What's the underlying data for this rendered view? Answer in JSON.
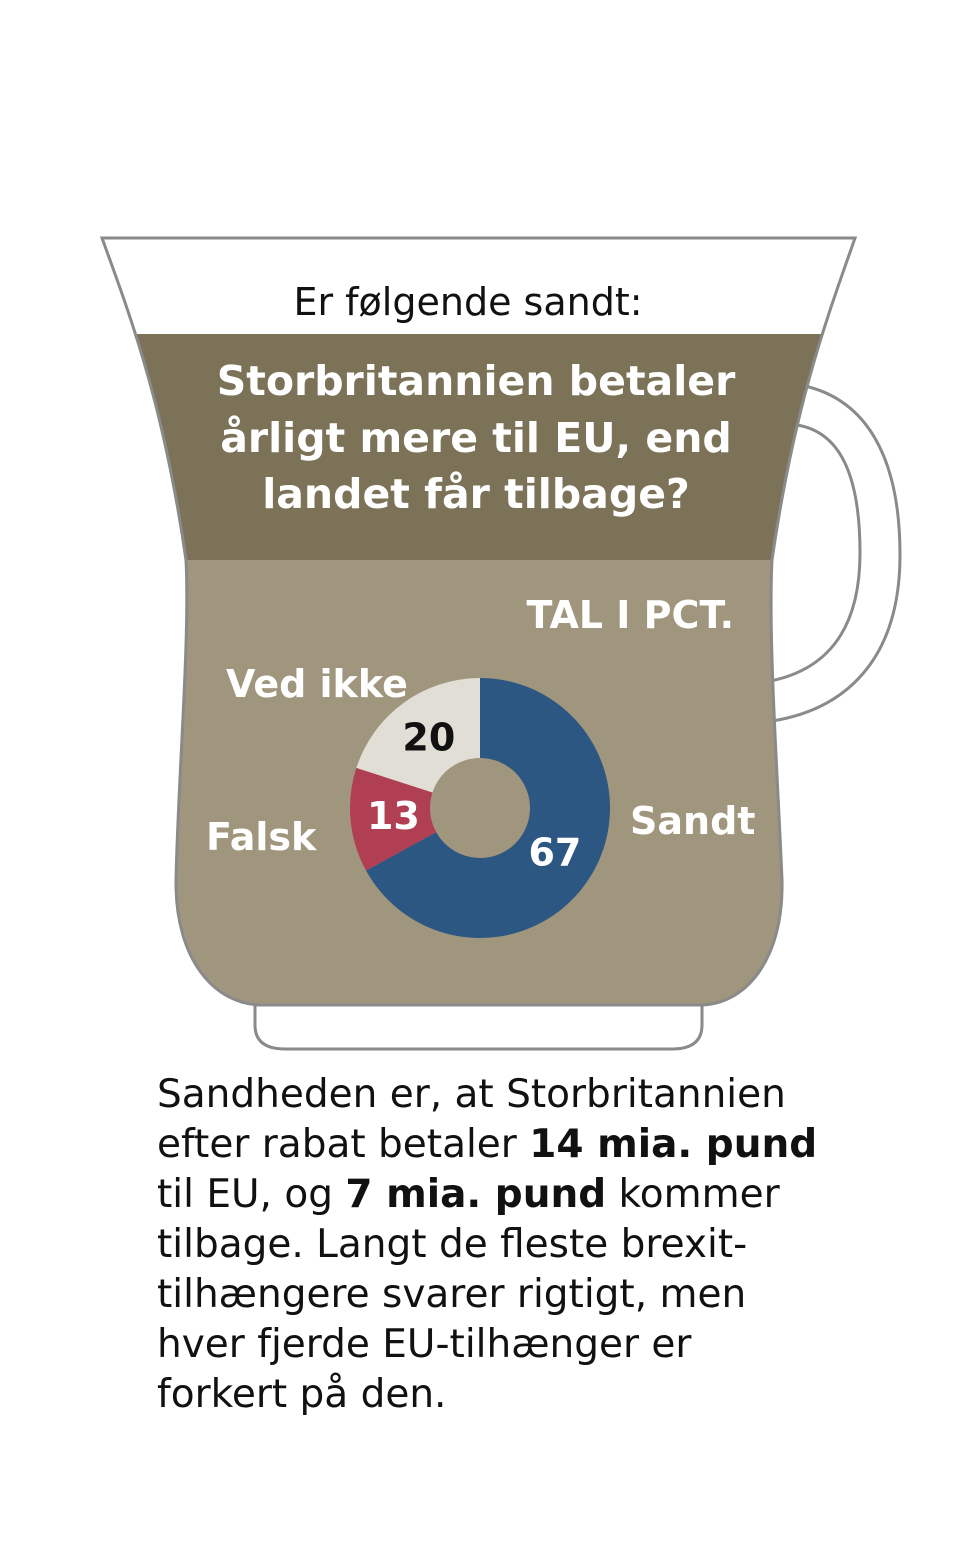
{
  "intro": "Er følgende sandt:",
  "question_lines": [
    "Storbritannien betaler",
    "årligt mere til EU, end",
    "landet får tilbage?"
  ],
  "unit_label": "TAL I PCT.",
  "colors": {
    "cup_outline": "#8a8a8a",
    "band_dark": "#7b7258",
    "cup_fill": "#a0957d",
    "sandt": "#2d5783",
    "falsk": "#b13f53",
    "ved_ikke": "#e1ded6"
  },
  "chart_data": {
    "type": "pie",
    "style": "donut",
    "unit": "pct",
    "categories": [
      "Sandt",
      "Falsk",
      "Ved ikke"
    ],
    "values": [
      67,
      13,
      20
    ],
    "colors": [
      "#2d5783",
      "#b13f53",
      "#e1ded6"
    ],
    "label_colors": [
      "#ffffff",
      "#ffffff",
      "#111111"
    ]
  },
  "footer": {
    "lines": [
      [
        {
          "t": "Sandheden er, at Storbritannien",
          "b": false
        }
      ],
      [
        {
          "t": "efter rabat betaler ",
          "b": false
        },
        {
          "t": "14 mia. pund",
          "b": true
        }
      ],
      [
        {
          "t": "til EU, og ",
          "b": false
        },
        {
          "t": "7 mia. pund",
          "b": true
        },
        {
          "t": " kommer",
          "b": false
        }
      ],
      [
        {
          "t": "tilbage. Langt de fleste brexit-",
          "b": false
        }
      ],
      [
        {
          "t": "tilhængere svarer rigtigt, men",
          "b": false
        }
      ],
      [
        {
          "t": "hver fjerde EU-tilhænger er",
          "b": false
        }
      ],
      [
        {
          "t": "forkert på den.",
          "b": false
        }
      ]
    ]
  }
}
